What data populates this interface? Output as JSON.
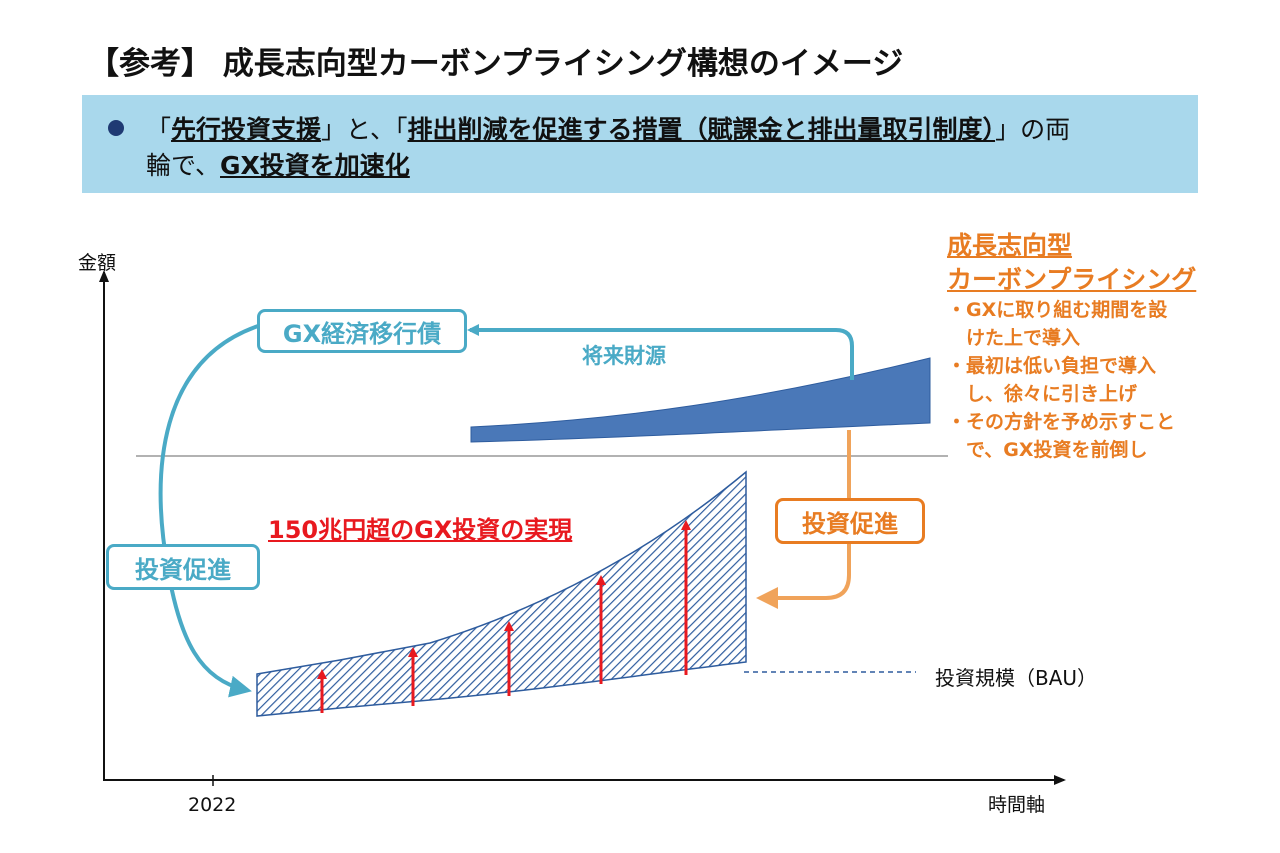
{
  "title": "【参考】 成長志向型カーボンプライシング構想のイメージ",
  "banner": {
    "line1": {
      "p1": "「",
      "b1": "先行投資支援",
      "p2": "」と、「",
      "b2": "排出削減を促進する措置（賦課金と排出量取引制度）",
      "p3": "」の両"
    },
    "line2": {
      "p1": "輪で、",
      "b1": "GX投資を加速化"
    }
  },
  "axes": {
    "y_label": "金額",
    "x_label": "時間軸",
    "x_tick": "2022"
  },
  "boxes": {
    "gx_bond": "GX経済移行債",
    "invest_left": "投資促進",
    "invest_right": "投資促進"
  },
  "future_funds": "将来財源",
  "red_caption": "150兆円超のGX投資の実現",
  "bau_label": "投資規模（BAU）",
  "carbon_pricing": {
    "heading_line1": "成長志向型",
    "heading_line2": "カーボンプライシング",
    "notes": [
      "・GXに取り組む期間を設",
      "　けた上で導入",
      "・最初は低い負担で導入",
      "　し、徐々に引き上げ",
      "・その方針を予め示すこと",
      "　で、GX投資を前倒し"
    ]
  },
  "colors": {
    "teal": "#4aaac6",
    "orange": "#e87c22",
    "navy": "#2e5c9e",
    "red": "#e8191f",
    "banner_bg": "#a9d8ec"
  }
}
